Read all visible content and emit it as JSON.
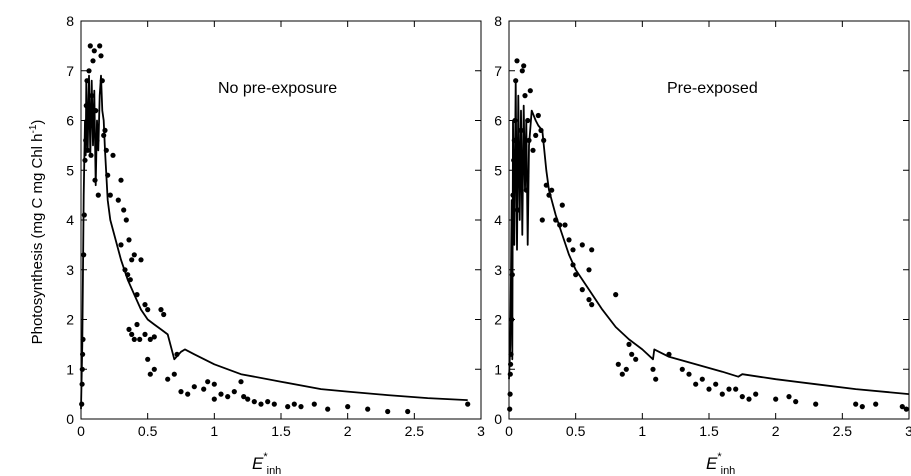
{
  "ylabel": {
    "main": "Photosynthesis (mg C mg Chl h",
    "sup": "-1",
    "close": ")"
  },
  "chart_data": [
    {
      "type": "scatter",
      "annotation": "No pre-exposure",
      "xlabel": {
        "main": "E",
        "star": "*",
        "sub": "inh"
      },
      "xlim": [
        0,
        3
      ],
      "ylim": [
        0,
        8
      ],
      "xticks": [
        "0",
        "0.5",
        "1",
        "1.5",
        "2",
        "2.5",
        "3"
      ],
      "yticks": [
        "0",
        "1",
        "2",
        "3",
        "4",
        "5",
        "6",
        "7",
        "8"
      ],
      "points": [
        [
          0.005,
          0.3
        ],
        [
          0.008,
          0.7
        ],
        [
          0.01,
          1.0
        ],
        [
          0.012,
          1.3
        ],
        [
          0.015,
          1.6
        ],
        [
          0.02,
          3.3
        ],
        [
          0.025,
          4.1
        ],
        [
          0.03,
          5.2
        ],
        [
          0.035,
          5.6
        ],
        [
          0.04,
          6.3
        ],
        [
          0.045,
          6.8
        ],
        [
          0.05,
          5.4
        ],
        [
          0.06,
          7.0
        ],
        [
          0.07,
          7.5
        ],
        [
          0.075,
          5.3
        ],
        [
          0.08,
          6.5
        ],
        [
          0.085,
          5.9
        ],
        [
          0.09,
          7.2
        ],
        [
          0.1,
          7.4
        ],
        [
          0.105,
          4.8
        ],
        [
          0.11,
          6.2
        ],
        [
          0.12,
          5.6
        ],
        [
          0.13,
          4.5
        ],
        [
          0.14,
          7.5
        ],
        [
          0.15,
          7.3
        ],
        [
          0.16,
          6.8
        ],
        [
          0.17,
          5.7
        ],
        [
          0.18,
          5.8
        ],
        [
          0.19,
          5.4
        ],
        [
          0.2,
          4.9
        ],
        [
          0.22,
          4.5
        ],
        [
          0.24,
          5.3
        ],
        [
          0.28,
          4.4
        ],
        [
          0.3,
          4.8
        ],
        [
          0.32,
          4.2
        ],
        [
          0.34,
          4.0
        ],
        [
          0.36,
          3.6
        ],
        [
          0.38,
          3.2
        ],
        [
          0.4,
          3.3
        ],
        [
          0.45,
          3.2
        ],
        [
          0.3,
          3.5
        ],
        [
          0.33,
          3.0
        ],
        [
          0.35,
          2.9
        ],
        [
          0.37,
          2.8
        ],
        [
          0.42,
          2.5
        ],
        [
          0.48,
          2.3
        ],
        [
          0.5,
          2.2
        ],
        [
          0.36,
          1.8
        ],
        [
          0.38,
          1.7
        ],
        [
          0.42,
          1.9
        ],
        [
          0.4,
          1.6
        ],
        [
          0.44,
          1.6
        ],
        [
          0.48,
          1.7
        ],
        [
          0.52,
          1.6
        ],
        [
          0.55,
          1.65
        ],
        [
          0.6,
          2.2
        ],
        [
          0.62,
          2.1
        ],
        [
          0.65,
          0.8
        ],
        [
          0.7,
          0.9
        ],
        [
          0.75,
          0.55
        ],
        [
          0.8,
          0.5
        ],
        [
          0.5,
          1.2
        ],
        [
          0.55,
          1.0
        ],
        [
          0.52,
          0.9
        ],
        [
          0.72,
          1.3
        ],
        [
          0.85,
          0.65
        ],
        [
          0.92,
          0.6
        ],
        [
          0.95,
          0.75
        ],
        [
          1.0,
          0.7
        ],
        [
          1.05,
          0.5
        ],
        [
          1.0,
          0.4
        ],
        [
          1.1,
          0.45
        ],
        [
          1.15,
          0.55
        ],
        [
          1.2,
          0.75
        ],
        [
          1.22,
          0.45
        ],
        [
          1.25,
          0.4
        ],
        [
          1.3,
          0.35
        ],
        [
          1.35,
          0.3
        ],
        [
          1.4,
          0.35
        ],
        [
          1.45,
          0.3
        ],
        [
          1.55,
          0.25
        ],
        [
          1.6,
          0.3
        ],
        [
          1.65,
          0.25
        ],
        [
          1.75,
          0.3
        ],
        [
          1.85,
          0.2
        ],
        [
          2.0,
          0.25
        ],
        [
          2.15,
          0.2
        ],
        [
          2.3,
          0.15
        ],
        [
          2.45,
          0.15
        ],
        [
          2.9,
          0.3
        ]
      ],
      "model_line": [
        [
          0.0,
          0.2
        ],
        [
          0.01,
          1.5
        ],
        [
          0.02,
          4.5
        ],
        [
          0.03,
          6.0
        ],
        [
          0.035,
          5.3
        ],
        [
          0.04,
          6.8
        ],
        [
          0.05,
          5.4
        ],
        [
          0.06,
          6.9
        ],
        [
          0.07,
          5.3
        ],
        [
          0.08,
          6.8
        ],
        [
          0.09,
          5.5
        ],
        [
          0.1,
          6.6
        ],
        [
          0.11,
          4.7
        ],
        [
          0.12,
          6.0
        ],
        [
          0.13,
          5.4
        ],
        [
          0.14,
          6.5
        ],
        [
          0.15,
          6.9
        ],
        [
          0.16,
          6.2
        ],
        [
          0.17,
          6.0
        ],
        [
          0.18,
          5.4
        ],
        [
          0.2,
          4.4
        ],
        [
          0.22,
          4.0
        ],
        [
          0.25,
          3.7
        ],
        [
          0.3,
          3.2
        ],
        [
          0.35,
          2.8
        ],
        [
          0.4,
          2.5
        ],
        [
          0.45,
          2.2
        ],
        [
          0.5,
          2.0
        ],
        [
          0.55,
          1.9
        ],
        [
          0.6,
          1.8
        ],
        [
          0.65,
          1.7
        ],
        [
          0.7,
          1.2
        ],
        [
          0.75,
          1.35
        ],
        [
          0.78,
          1.4
        ],
        [
          0.85,
          1.3
        ],
        [
          1.0,
          1.1
        ],
        [
          1.2,
          0.9
        ],
        [
          1.5,
          0.75
        ],
        [
          1.8,
          0.6
        ],
        [
          2.0,
          0.55
        ],
        [
          2.3,
          0.48
        ],
        [
          2.6,
          0.42
        ],
        [
          2.9,
          0.38
        ]
      ]
    },
    {
      "type": "scatter",
      "annotation": "Pre-exposed",
      "xlabel": {
        "main": "E",
        "star": "*",
        "sub": "inh"
      },
      "xlim": [
        0,
        3
      ],
      "ylim": [
        0,
        8
      ],
      "xticks": [
        "0",
        "0.5",
        "1",
        "1.5",
        "2",
        "2.5",
        "3"
      ],
      "yticks": [
        "0",
        "1",
        "2",
        "3",
        "4",
        "5",
        "6",
        "7",
        "8"
      ],
      "points": [
        [
          0.005,
          0.2
        ],
        [
          0.008,
          0.5
        ],
        [
          0.01,
          0.9
        ],
        [
          0.012,
          1.1
        ],
        [
          0.015,
          1.3
        ],
        [
          0.02,
          2.0
        ],
        [
          0.025,
          2.9
        ],
        [
          0.03,
          4.5
        ],
        [
          0.035,
          5.2
        ],
        [
          0.04,
          5.6
        ],
        [
          0.045,
          6.0
        ],
        [
          0.05,
          6.8
        ],
        [
          0.06,
          7.2
        ],
        [
          0.065,
          4.2
        ],
        [
          0.07,
          5.0
        ],
        [
          0.08,
          4.8
        ],
        [
          0.09,
          5.8
        ],
        [
          0.1,
          7.0
        ],
        [
          0.11,
          7.1
        ],
        [
          0.12,
          6.5
        ],
        [
          0.13,
          4.6
        ],
        [
          0.14,
          6.0
        ],
        [
          0.15,
          5.6
        ],
        [
          0.16,
          6.6
        ],
        [
          0.18,
          5.4
        ],
        [
          0.2,
          5.7
        ],
        [
          0.22,
          6.1
        ],
        [
          0.24,
          5.8
        ],
        [
          0.26,
          5.6
        ],
        [
          0.28,
          4.7
        ],
        [
          0.3,
          4.5
        ],
        [
          0.32,
          4.6
        ],
        [
          0.25,
          4.0
        ],
        [
          0.35,
          4.0
        ],
        [
          0.38,
          3.9
        ],
        [
          0.4,
          4.3
        ],
        [
          0.42,
          3.9
        ],
        [
          0.45,
          3.6
        ],
        [
          0.48,
          3.4
        ],
        [
          0.55,
          3.5
        ],
        [
          0.6,
          3.0
        ],
        [
          0.62,
          3.4
        ],
        [
          0.48,
          3.1
        ],
        [
          0.5,
          2.9
        ],
        [
          0.55,
          2.6
        ],
        [
          0.6,
          2.4
        ],
        [
          0.62,
          2.3
        ],
        [
          0.8,
          2.5
        ],
        [
          0.82,
          1.1
        ],
        [
          0.85,
          0.9
        ],
        [
          0.88,
          1.0
        ],
        [
          0.9,
          1.5
        ],
        [
          0.92,
          1.3
        ],
        [
          0.95,
          1.2
        ],
        [
          1.08,
          1.0
        ],
        [
          1.1,
          0.8
        ],
        [
          1.2,
          1.3
        ],
        [
          1.3,
          1.0
        ],
        [
          1.35,
          0.9
        ],
        [
          1.4,
          0.7
        ],
        [
          1.45,
          0.8
        ],
        [
          1.5,
          0.6
        ],
        [
          1.55,
          0.7
        ],
        [
          1.6,
          0.5
        ],
        [
          1.65,
          0.6
        ],
        [
          1.7,
          0.6
        ],
        [
          1.75,
          0.45
        ],
        [
          1.8,
          0.4
        ],
        [
          1.85,
          0.5
        ],
        [
          2.0,
          0.4
        ],
        [
          2.1,
          0.45
        ],
        [
          2.15,
          0.35
        ],
        [
          2.3,
          0.3
        ],
        [
          2.6,
          0.3
        ],
        [
          2.65,
          0.25
        ],
        [
          2.75,
          0.3
        ],
        [
          2.95,
          0.25
        ],
        [
          2.98,
          0.2
        ]
      ],
      "model_line": [
        [
          0.0,
          0.8
        ],
        [
          0.01,
          1.5
        ],
        [
          0.02,
          4.4
        ],
        [
          0.025,
          1.2
        ],
        [
          0.03,
          6.0
        ],
        [
          0.04,
          3.5
        ],
        [
          0.05,
          6.8
        ],
        [
          0.06,
          3.4
        ],
        [
          0.07,
          6.5
        ],
        [
          0.08,
          4.0
        ],
        [
          0.09,
          6.2
        ],
        [
          0.1,
          3.7
        ],
        [
          0.11,
          6.3
        ],
        [
          0.12,
          4.6
        ],
        [
          0.13,
          6.0
        ],
        [
          0.14,
          3.5
        ],
        [
          0.15,
          5.5
        ],
        [
          0.17,
          6.2
        ],
        [
          0.2,
          6.0
        ],
        [
          0.22,
          5.9
        ],
        [
          0.25,
          5.8
        ],
        [
          0.28,
          5.0
        ],
        [
          0.3,
          4.6
        ],
        [
          0.35,
          4.1
        ],
        [
          0.4,
          3.7
        ],
        [
          0.45,
          3.3
        ],
        [
          0.5,
          3.0
        ],
        [
          0.6,
          2.6
        ],
        [
          0.7,
          2.2
        ],
        [
          0.8,
          1.85
        ],
        [
          0.9,
          1.6
        ],
        [
          1.0,
          1.4
        ],
        [
          1.08,
          1.2
        ],
        [
          1.09,
          1.4
        ],
        [
          1.2,
          1.25
        ],
        [
          1.4,
          1.1
        ],
        [
          1.6,
          0.95
        ],
        [
          1.72,
          0.85
        ],
        [
          1.75,
          0.9
        ],
        [
          2.0,
          0.8
        ],
        [
          2.3,
          0.7
        ],
        [
          2.6,
          0.6
        ],
        [
          3.0,
          0.5
        ]
      ]
    }
  ]
}
